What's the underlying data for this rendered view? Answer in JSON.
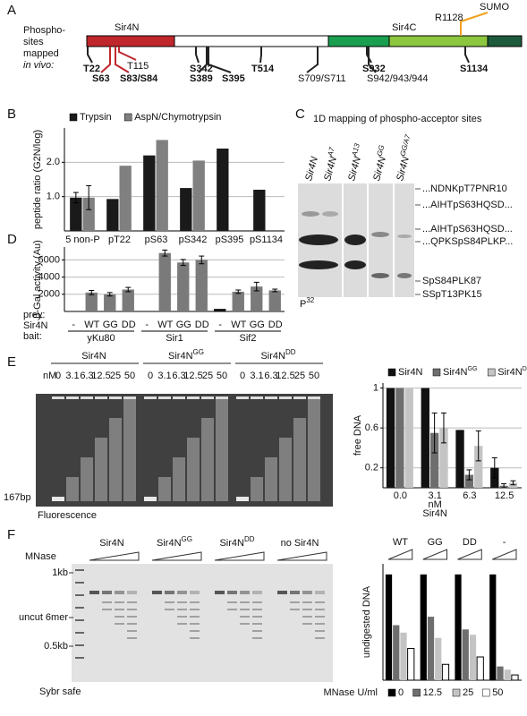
{
  "panel_letters": [
    "A",
    "B",
    "C",
    "D",
    "E",
    "F"
  ],
  "panel_a": {
    "label_lines": [
      "Phospho-",
      "sites",
      "mapped",
      "in vivo:"
    ],
    "domains": [
      "Sir4N",
      "Sir4C"
    ],
    "modification": {
      "residue": "R1128",
      "name": "SUMO"
    },
    "sites": [
      "T22",
      "S63",
      "S83/S84",
      "T115",
      "S342",
      "S389",
      "S395",
      "T514",
      "S709/S711",
      "S932",
      "S942/943/944",
      "S1134"
    ]
  },
  "panel_c": {
    "title": "1D mapping of phospho-acceptor sites",
    "lanes": [
      {
        "name": "Sir4N"
      },
      {
        "name": "Sir4N",
        "superscript": "A7"
      },
      {
        "name": "Sir4N",
        "superscript": "A13"
      },
      {
        "name": "Sir4N",
        "superscript": "GG"
      },
      {
        "name": "Sir4N",
        "superscript": "GG/A7"
      }
    ],
    "peptides": [
      "...NDNKpT7PNR10",
      "...AIHTpS63HQSD...",
      "...AIHTpS63HQSD...",
      "...QPKSpS84PLKP...",
      "SpS84PLK87",
      "SSpT13PK15"
    ],
    "label": {
      "name": "P",
      "superscript": "32"
    }
  },
  "panel_e_gel": {
    "groups": [
      {
        "name": "Sir4N"
      },
      {
        "name": "Sir4N",
        "superscript": "GG"
      },
      {
        "name": "Sir4N",
        "superscript": "DD"
      }
    ],
    "unit": "nM",
    "concentrations": [
      "0",
      "3.1",
      "6.3",
      "12.5",
      "25",
      "50"
    ],
    "marker": "167bp",
    "stain": "Fluorescence"
  },
  "panel_f_gel": {
    "row_label": "MNase",
    "groups": [
      {
        "name": "Sir4N"
      },
      {
        "name": "Sir4N",
        "superscript": "GG"
      },
      {
        "name": "Sir4N",
        "superscript": "DD"
      },
      {
        "name": "no Sir4N"
      }
    ],
    "markers": [
      "1kb",
      "uncut 6mer",
      "0.5kb"
    ],
    "stain": "Sybr safe"
  },
  "chart_data": [
    {
      "type": "bar",
      "ylabel": "peptide ratio (G2N/log)",
      "categories": [
        "5 non-P",
        "pT22",
        "pS63",
        "pS342",
        "pS395",
        "pS1134"
      ],
      "series": [
        {
          "name": "Trypsin",
          "color": "#1a1a1a",
          "values": [
            0.97,
            0.93,
            2.2,
            1.25,
            2.4,
            1.2
          ],
          "errors": [
            0.15,
            null,
            null,
            null,
            null,
            null
          ]
        },
        {
          "name": "AspN/Chymotrypsin",
          "color": "#808080",
          "values": [
            0.97,
            1.9,
            2.65,
            2.05,
            null,
            null
          ],
          "errors": [
            0.35,
            null,
            null,
            null,
            null,
            null
          ]
        }
      ],
      "ylim": [
        0,
        3
      ],
      "yticks": [
        {
          "value": 1,
          "label": "1.0"
        },
        {
          "value": 2,
          "label": "2.0"
        }
      ],
      "grid": true,
      "legend": "top"
    },
    {
      "type": "bar",
      "ylabel": "β-Gal activity (Au)",
      "categories": [
        "-",
        "WT",
        "GG",
        "DD",
        "-",
        "WT",
        "GG",
        "DD",
        "-",
        "WT",
        "GG",
        "DD"
      ],
      "values": [
        null,
        2200,
        2000,
        2550,
        null,
        6800,
        5700,
        6000,
        300,
        2300,
        2900,
        2450
      ],
      "errors": [
        null,
        250,
        200,
        250,
        null,
        350,
        350,
        450,
        null,
        200,
        500,
        150
      ],
      "colors": [
        "#111111",
        "#7a7a7a",
        "#7a7a7a",
        "#7a7a7a",
        "#111111",
        "#7a7a7a",
        "#7a7a7a",
        "#7a7a7a",
        "#111111",
        "#7a7a7a",
        "#7a7a7a",
        "#7a7a7a"
      ],
      "ylim": [
        0,
        7500
      ],
      "yticks": [
        2000,
        4000,
        6000
      ],
      "grid": true,
      "row_labels": [
        "prey:",
        "Sir4N",
        "bait:"
      ],
      "bait_groups": [
        "yKu80",
        "Sir1",
        "Sif2"
      ]
    },
    {
      "type": "bar",
      "ylabel": "free DNA",
      "categories": [
        "0.0",
        "3.1",
        "6.3",
        "12.5"
      ],
      "xlabel_lines": [
        "nM",
        "Sir4N"
      ],
      "series": [
        {
          "name": "Sir4N",
          "color": "#111111",
          "values": [
            1.0,
            1.0,
            0.58,
            0.2
          ],
          "errors": [
            null,
            null,
            null,
            0.1
          ]
        },
        {
          "name": "Sir4N",
          "superscript": "GG",
          "color": "#6e6e6e",
          "values": [
            1.0,
            0.55,
            0.13,
            0.02
          ],
          "errors": [
            null,
            0.2,
            0.05,
            0.02
          ]
        },
        {
          "name": "Sir4N",
          "superscript": "DD",
          "color": "#c4c4c4",
          "values": [
            1.0,
            0.6,
            0.42,
            0.05
          ],
          "errors": [
            null,
            0.15,
            0.15,
            0.02
          ]
        }
      ],
      "ylim": [
        0,
        1.05
      ],
      "yticks": [
        0.2,
        0.6,
        1
      ],
      "grid": true,
      "legend": "top"
    },
    {
      "type": "bar",
      "ylabel": "undigested DNA",
      "categories": [
        "WT",
        "GG",
        "DD",
        "-"
      ],
      "legend_title": "MNase U/ml",
      "series": [
        {
          "name": "0",
          "color": "#000000",
          "values": [
            1.0,
            1.0,
            1.0,
            1.0
          ]
        },
        {
          "name": "12.5",
          "color": "#6e6e6e",
          "values": [
            0.52,
            0.6,
            0.48,
            0.13
          ]
        },
        {
          "name": "25",
          "color": "#c4c4c4",
          "values": [
            0.45,
            0.4,
            0.43,
            0.1
          ]
        },
        {
          "name": "50",
          "color": "#ffffff",
          "values": [
            0.3,
            0.15,
            0.22,
            0.05
          ]
        }
      ],
      "ylim": [
        0,
        1.1
      ],
      "grid": false,
      "legend": "bottom"
    }
  ]
}
